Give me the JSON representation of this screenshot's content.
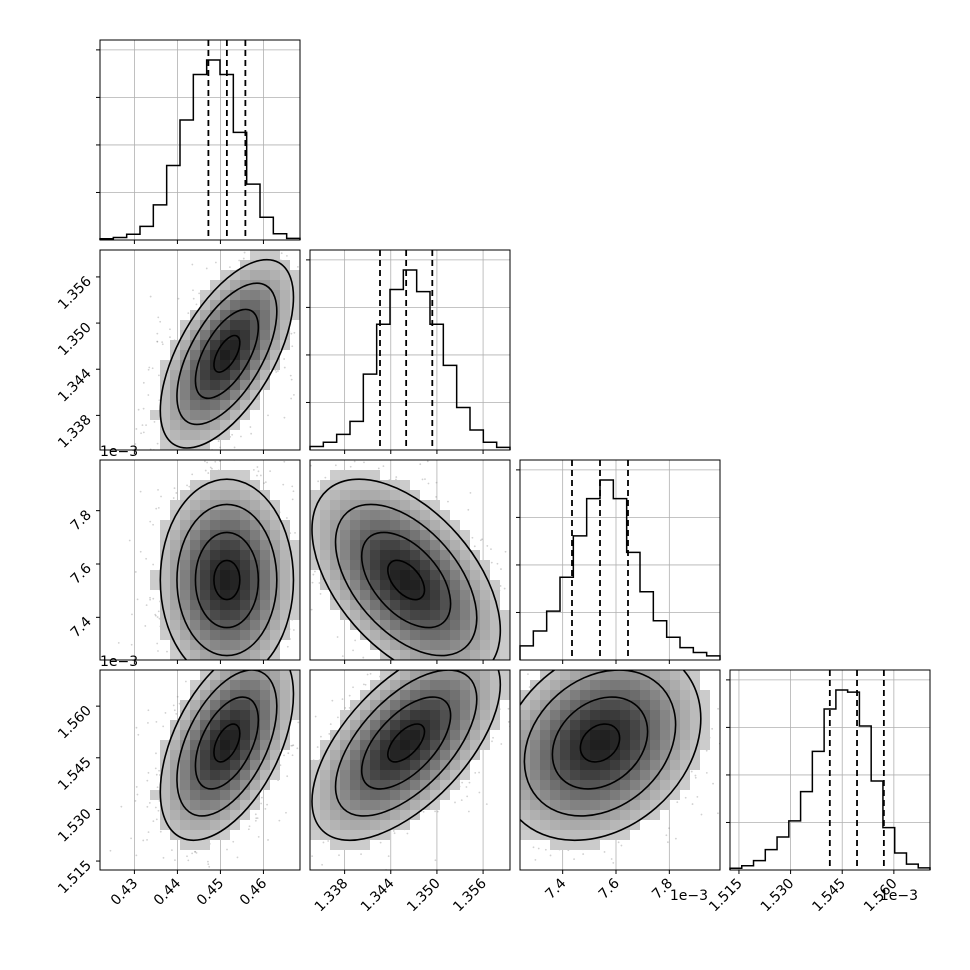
{
  "chart_data": {
    "type": "corner",
    "title": "",
    "grid": true,
    "variables": [
      {
        "ticks": [
          0.43,
          0.44,
          0.45,
          0.46
        ],
        "tick_labels": [
          "0.43",
          "0.44",
          "0.45",
          "0.46"
        ],
        "range": [
          0.422,
          0.4685
        ],
        "offset_label": "",
        "quantiles": [
          0.4472,
          0.4515,
          0.4558
        ]
      },
      {
        "ticks": [
          1.338,
          1.344,
          1.35,
          1.356
        ],
        "tick_labels": [
          "1.338",
          "1.344",
          "1.350",
          "1.356"
        ],
        "range": [
          1.3335,
          1.3595
        ],
        "offset_label": "",
        "quantiles": [
          1.3426,
          1.346,
          1.3494
        ]
      },
      {
        "ticks": [
          7.4,
          7.6,
          7.8
        ],
        "tick_labels": [
          "7.4",
          "7.6",
          "7.8"
        ],
        "range": [
          7.24,
          7.99
        ],
        "offset_label": "1e−3",
        "quantiles": [
          7.435,
          7.54,
          7.645
        ]
      },
      {
        "ticks": [
          1.515,
          1.53,
          1.545,
          1.56
        ],
        "tick_labels": [
          "1.515",
          "1.530",
          "1.545",
          "1.560"
        ],
        "range": [
          1.5124,
          1.5705
        ],
        "offset_label": "1e−3",
        "quantiles": [
          1.5414,
          1.5493,
          1.5571
        ]
      }
    ],
    "histograms": [
      [
        0.3,
        0.6,
        1.4,
        3.3,
        8.5,
        18.0,
        29.0,
        40.0,
        43.5,
        40.0,
        26.0,
        13.5,
        5.5,
        1.5,
        0.4
      ],
      [
        0.8,
        1.8,
        3.6,
        6.6,
        17.5,
        29.0,
        37.0,
        41.5,
        36.5,
        29.0,
        19.5,
        9.8,
        4.6,
        1.8,
        0.6
      ],
      [
        3.4,
        7.0,
        11.8,
        20.0,
        30.0,
        39.0,
        43.5,
        39.0,
        26.0,
        16.5,
        9.5,
        5.5,
        3.0,
        1.8,
        1.0
      ],
      [
        0.4,
        1.0,
        2.2,
        4.8,
        7.8,
        11.6,
        18.5,
        28.0,
        38.0,
        42.5,
        42.0,
        34.0,
        21.0,
        10.0,
        4.0,
        1.4,
        0.5
      ]
    ],
    "correlations": {
      "1,0": 0.6,
      "2,0": 0.0,
      "2,1": -0.5,
      "3,0": 0.5,
      "3,1": 0.6,
      "3,2": 0.25
    }
  }
}
